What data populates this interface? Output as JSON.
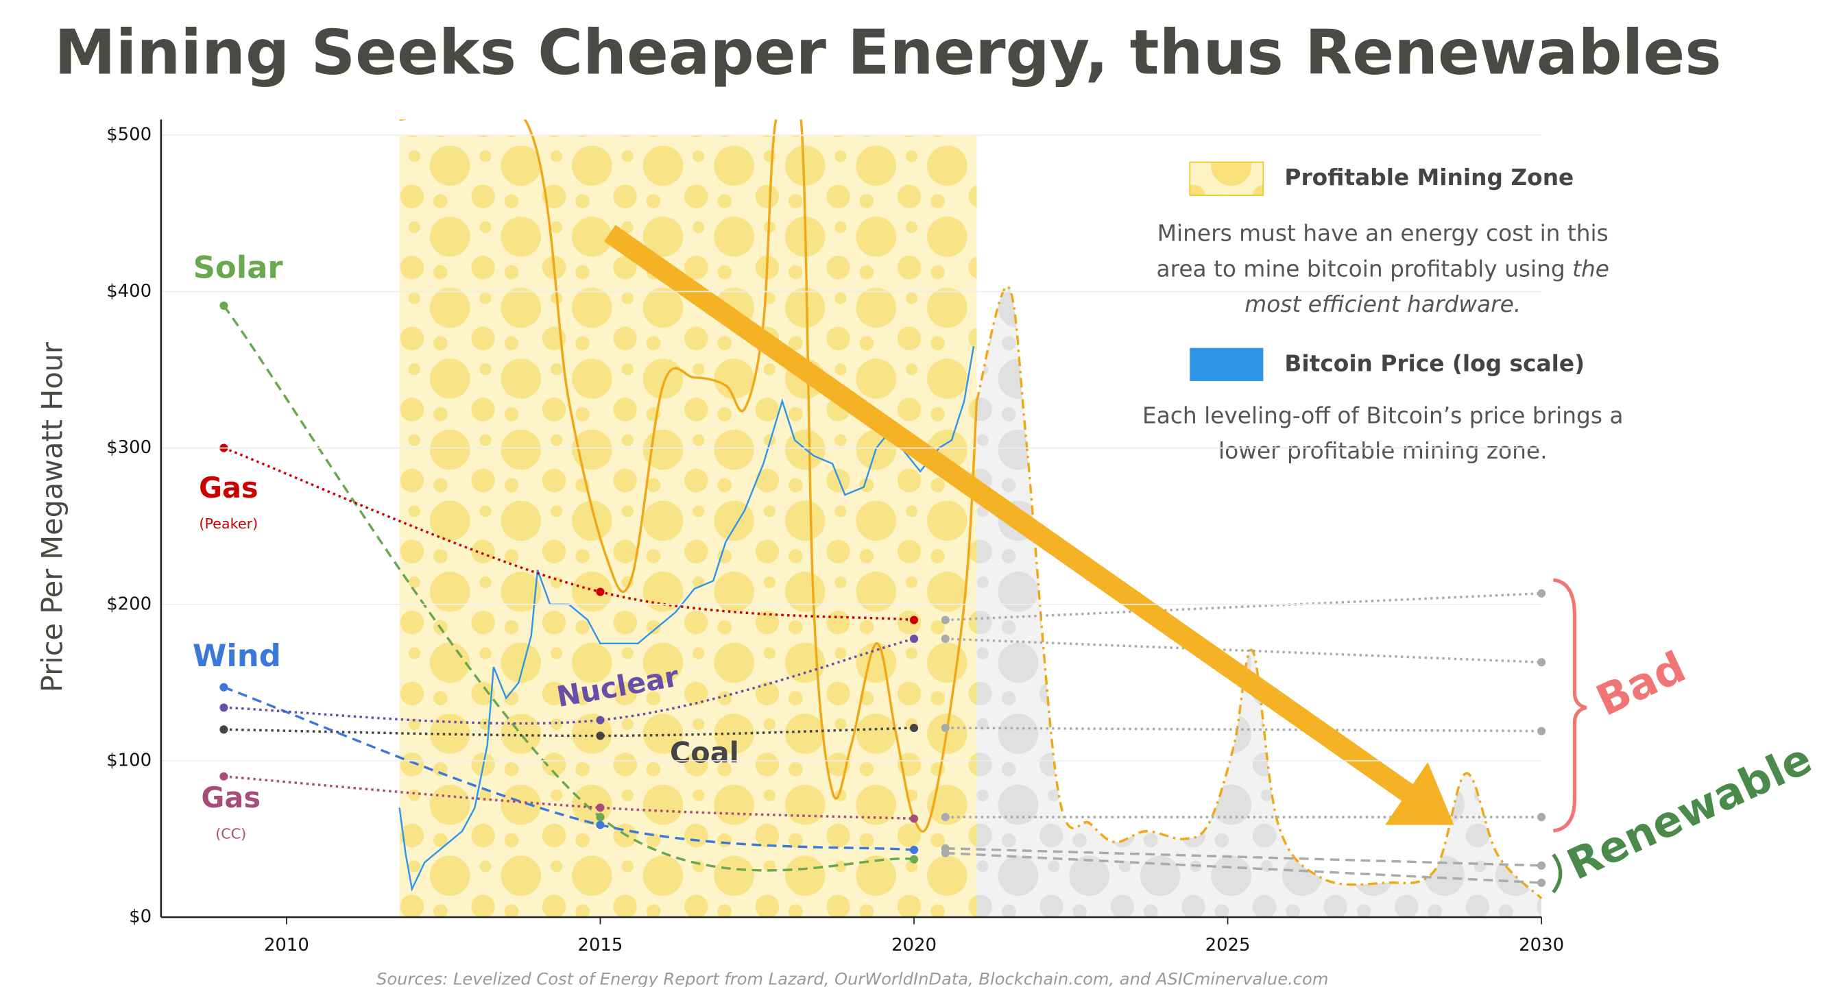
{
  "chart_data": {
    "type": "line",
    "title": "Mining Seeks Cheaper Energy, thus Renewables",
    "y_label": "Price Per Megawatt Hour",
    "source": "Sources: Levelized Cost of Energy Report from Lazard, OurWorldInData, Blockchain.com, and ASICminervalue.com",
    "xlim": [
      2008,
      2030
    ],
    "xticks": [
      2010,
      2015,
      2020,
      2025,
      2030
    ],
    "ylim": [
      0,
      510
    ],
    "yticks": [
      {
        "value": 0,
        "label": "$0"
      },
      {
        "value": 100,
        "label": "$100"
      },
      {
        "value": 200,
        "label": "$200"
      },
      {
        "value": 300,
        "label": "$300"
      },
      {
        "value": 400,
        "label": "$400"
      },
      {
        "value": 500,
        "label": "$500"
      }
    ],
    "grid": true,
    "zone": {
      "name": "Profitable Mining Zone",
      "color": "#f0a818",
      "x": [
        2011.8,
        2013.8,
        2014.5,
        2015.1,
        2015.5,
        2016,
        2016.5,
        2017,
        2017.3,
        2017.6,
        2017.8,
        2018.2,
        2018.4,
        2018.7,
        2019,
        2019.4,
        2019.7,
        2020,
        2020.3,
        2020.8,
        2021
      ],
      "values": [
        510,
        510,
        330,
        230,
        217,
        340,
        345,
        340,
        325,
        380,
        510,
        510,
        200,
        80,
        110,
        175,
        120,
        63,
        70,
        200,
        330
      ]
    },
    "zone_projection": {
      "x": [
        2021,
        2021.5,
        2021.8,
        2022.3,
        2022.8,
        2023.2,
        2023.7,
        2024.3,
        2024.7,
        2025.1,
        2025.4,
        2025.8,
        2026.5,
        2027.5,
        2028.3,
        2028.8,
        2029.3,
        2030
      ],
      "values": [
        330,
        403,
        300,
        80,
        60,
        48,
        55,
        50,
        60,
        110,
        170,
        60,
        25,
        22,
        30,
        92,
        40,
        12
      ]
    },
    "bitcoin": {
      "name": "Bitcoin Price (log scale)",
      "color": "#2f95e8",
      "x": [
        2011.8,
        2011.9,
        2012,
        2012.2,
        2012.5,
        2012.8,
        2013,
        2013.2,
        2013.3,
        2013.5,
        2013.7,
        2013.9,
        2014,
        2014.2,
        2014.5,
        2014.8,
        2015,
        2015.3,
        2015.6,
        2015.9,
        2016.2,
        2016.5,
        2016.8,
        2017,
        2017.3,
        2017.6,
        2017.9,
        2018.1,
        2018.4,
        2018.7,
        2018.9,
        2019.2,
        2019.4,
        2019.6,
        2019.9,
        2020.1,
        2020.4,
        2020.6,
        2020.8,
        2020.95
      ],
      "values": [
        70,
        40,
        18,
        35,
        45,
        55,
        70,
        110,
        160,
        140,
        150,
        180,
        222,
        200,
        200,
        190,
        175,
        175,
        175,
        185,
        195,
        210,
        215,
        240,
        260,
        290,
        330,
        305,
        295,
        290,
        270,
        275,
        300,
        310,
        295,
        285,
        300,
        305,
        330,
        365
      ]
    },
    "zone_note": [
      "Miners must have an energy cost in this",
      "area to mine bitcoin profitably using",
      "the",
      "most efficient hardware."
    ],
    "price_note": [
      "Each leveling-off of Bitcoin’s price brings a",
      "lower profitable mining zone."
    ],
    "series": [
      {
        "name": "Solar",
        "color": "#6aa84f",
        "dash": "dashed",
        "x": [
          2009,
          2015,
          2020
        ],
        "values": [
          391,
          64,
          37
        ],
        "projection": {
          "x": [
            2020.5,
            2030
          ],
          "values": [
            41,
            22
          ]
        }
      },
      {
        "name": "Gas",
        "note": "(Peaker)",
        "color": "#cc0000",
        "dash": "dotted",
        "x": [
          2009,
          2015,
          2020
        ],
        "values": [
          300,
          208,
          190
        ],
        "projection": {
          "x": [
            2020.5,
            2030
          ],
          "values": [
            190,
            207
          ]
        }
      },
      {
        "name": "Wind",
        "color": "#3c78d8",
        "dash": "dashed",
        "x": [
          2009,
          2015,
          2020
        ],
        "values": [
          147,
          59,
          43
        ],
        "projection": {
          "x": [
            2020.5,
            2030
          ],
          "values": [
            44,
            33
          ]
        }
      },
      {
        "name": "Nuclear",
        "color": "#674ea7",
        "dash": "dotted",
        "x": [
          2009,
          2015,
          2020
        ],
        "values": [
          134,
          126,
          178
        ],
        "projection": {
          "x": [
            2020.5,
            2030
          ],
          "values": [
            178,
            163
          ]
        }
      },
      {
        "name": "Coal",
        "color": "#444444",
        "dash": "dotted",
        "x": [
          2009,
          2015,
          2020
        ],
        "values": [
          120,
          116,
          121
        ],
        "projection": {
          "x": [
            2020.5,
            2030
          ],
          "values": [
            121,
            119
          ]
        }
      },
      {
        "name": "Gas",
        "note": "(CC)",
        "color": "#a64d79",
        "dash": "dotted",
        "x": [
          2009,
          2015,
          2020
        ],
        "values": [
          90,
          70,
          63
        ],
        "projection": {
          "x": [
            2020.5,
            2030
          ],
          "values": [
            64,
            64
          ]
        }
      }
    ],
    "groups": [
      {
        "label": "Bad",
        "color": "#f07575"
      },
      {
        "label": "Renewable",
        "color": "#4a8a4a"
      }
    ]
  }
}
